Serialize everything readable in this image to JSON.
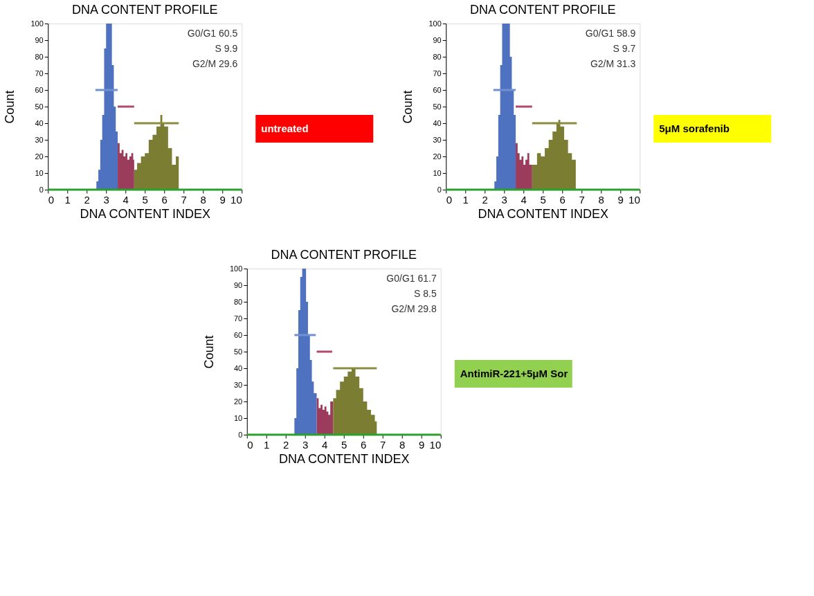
{
  "chart_data": [
    {
      "type": "area",
      "title": "DNA CONTENT PROFILE",
      "xlabel": "DNA CONTENT INDEX",
      "ylabel": "Count",
      "xlim": [
        0,
        10
      ],
      "ylim": [
        0,
        100
      ],
      "xticks": [
        0,
        1,
        2,
        3,
        4,
        5,
        6,
        7,
        8,
        9,
        10
      ],
      "yticks": [
        0,
        10,
        20,
        30,
        40,
        50,
        60,
        70,
        80,
        90,
        100
      ],
      "series": [
        {
          "color": "#4f72c0",
          "x": [
            2.45,
            2.5,
            2.6,
            2.7,
            2.8,
            2.9,
            3.0,
            3.1,
            3.2,
            3.3,
            3.4,
            3.5,
            3.6
          ],
          "values": [
            0,
            5,
            12,
            30,
            45,
            85,
            100,
            100,
            100,
            75,
            50,
            35,
            28
          ]
        },
        {
          "color": "#9b3c5c",
          "x": [
            3.6,
            3.7,
            3.8,
            3.9,
            4.0,
            4.1,
            4.2,
            4.3,
            4.4,
            4.45
          ],
          "values": [
            28,
            22,
            24,
            20,
            22,
            18,
            20,
            22,
            18,
            16
          ]
        },
        {
          "color": "#7b7d32",
          "x": [
            4.45,
            4.6,
            4.8,
            5.0,
            5.2,
            5.4,
            5.6,
            5.8,
            5.9,
            6.0,
            6.2,
            6.4,
            6.6,
            6.75
          ],
          "values": [
            12,
            16,
            20,
            22,
            30,
            33,
            38,
            45,
            40,
            38,
            25,
            15,
            20,
            18
          ]
        },
        {
          "type": "line",
          "color": "#7090d0",
          "x": [
            2.45,
            3.6
          ],
          "values": [
            60,
            60
          ]
        },
        {
          "type": "line",
          "color": "#b04a6e",
          "x": [
            3.6,
            4.45
          ],
          "values": [
            50,
            50
          ]
        },
        {
          "type": "line",
          "color": "#8a8c40",
          "x": [
            4.45,
            6.75
          ],
          "values": [
            40,
            40
          ]
        }
      ],
      "ref_lines": [
        {
          "axis": "y",
          "value": 0,
          "color": "#2ca02c"
        }
      ],
      "annotations": [
        "G0/G1 60.5",
        "S 9.9",
        "G2/M 29.6",
        "untreated"
      ]
    },
    {
      "type": "area",
      "title": "DNA CONTENT PROFILE",
      "xlabel": "DNA CONTENT INDEX",
      "ylabel": "Count",
      "xlim": [
        0,
        10
      ],
      "ylim": [
        0,
        100
      ],
      "xticks": [
        0,
        1,
        2,
        3,
        4,
        5,
        6,
        7,
        8,
        9,
        10
      ],
      "yticks": [
        0,
        10,
        20,
        30,
        40,
        50,
        60,
        70,
        80,
        90,
        100
      ],
      "series": [
        {
          "color": "#4f72c0",
          "x": [
            2.5,
            2.6,
            2.7,
            2.8,
            2.9,
            3.0,
            3.1,
            3.2,
            3.3,
            3.4,
            3.5,
            3.6
          ],
          "values": [
            5,
            20,
            45,
            75,
            100,
            100,
            100,
            100,
            80,
            60,
            45,
            32
          ]
        },
        {
          "color": "#9b3c5c",
          "x": [
            3.6,
            3.7,
            3.8,
            3.9,
            4.0,
            4.1,
            4.2,
            4.3,
            4.45
          ],
          "values": [
            28,
            22,
            18,
            20,
            15,
            18,
            22,
            15,
            18
          ]
        },
        {
          "color": "#7b7d32",
          "x": [
            4.45,
            4.5,
            4.7,
            4.9,
            5.1,
            5.3,
            5.5,
            5.7,
            5.8,
            5.9,
            6.1,
            6.3,
            6.5,
            6.7
          ],
          "values": [
            15,
            15,
            22,
            20,
            25,
            30,
            35,
            40,
            42,
            38,
            30,
            22,
            18,
            10
          ]
        },
        {
          "type": "line",
          "color": "#7090d0",
          "x": [
            2.45,
            3.6
          ],
          "values": [
            60,
            60
          ]
        },
        {
          "type": "line",
          "color": "#b04a6e",
          "x": [
            3.6,
            4.45
          ],
          "values": [
            50,
            50
          ]
        },
        {
          "type": "line",
          "color": "#8a8c40",
          "x": [
            4.45,
            6.75
          ],
          "values": [
            40,
            40
          ]
        }
      ],
      "ref_lines": [
        {
          "axis": "y",
          "value": 0,
          "color": "#2ca02c"
        }
      ],
      "annotations": [
        "G0/G1 58.9",
        "S 9.7",
        "G2/M 31.3",
        "5μM sorafenib"
      ]
    },
    {
      "type": "area",
      "title": "DNA CONTENT PROFILE",
      "xlabel": "DNA CONTENT INDEX",
      "ylabel": "Count",
      "xlim": [
        0,
        10
      ],
      "ylim": [
        0,
        100
      ],
      "xticks": [
        0,
        1,
        2,
        3,
        4,
        5,
        6,
        7,
        8,
        9,
        10
      ],
      "yticks": [
        0,
        10,
        20,
        30,
        40,
        50,
        60,
        70,
        80,
        90,
        100
      ],
      "series": [
        {
          "color": "#4f72c0",
          "x": [
            2.45,
            2.55,
            2.65,
            2.75,
            2.85,
            2.95,
            3.05,
            3.15,
            3.25,
            3.35,
            3.45,
            3.6
          ],
          "values": [
            10,
            40,
            75,
            95,
            100,
            100,
            80,
            60,
            45,
            32,
            25,
            22
          ]
        },
        {
          "color": "#9b3c5c",
          "x": [
            3.6,
            3.7,
            3.8,
            3.9,
            4.0,
            4.1,
            4.2,
            4.3,
            4.45
          ],
          "values": [
            22,
            16,
            18,
            15,
            17,
            14,
            12,
            20,
            18
          ]
        },
        {
          "color": "#7b7d32",
          "x": [
            4.45,
            4.6,
            4.8,
            5.0,
            5.2,
            5.4,
            5.6,
            5.8,
            6.0,
            6.2,
            6.4,
            6.6,
            6.7
          ],
          "values": [
            22,
            27,
            32,
            35,
            38,
            40,
            35,
            28,
            20,
            15,
            12,
            8,
            5
          ]
        },
        {
          "type": "line",
          "color": "#7090d0",
          "x": [
            2.45,
            3.55
          ],
          "values": [
            60,
            60
          ]
        },
        {
          "type": "line",
          "color": "#b04a6e",
          "x": [
            3.6,
            4.4
          ],
          "values": [
            50,
            50
          ]
        },
        {
          "type": "line",
          "color": "#8a8c40",
          "x": [
            4.45,
            6.7
          ],
          "values": [
            40,
            40
          ]
        }
      ],
      "ref_lines": [
        {
          "axis": "y",
          "value": 0,
          "color": "#2ca02c"
        }
      ],
      "annotations": [
        "G0/G1 61.7",
        "S 8.5",
        "G2/M 29.8",
        "AntimiR-221+5μM Sor"
      ]
    }
  ]
}
